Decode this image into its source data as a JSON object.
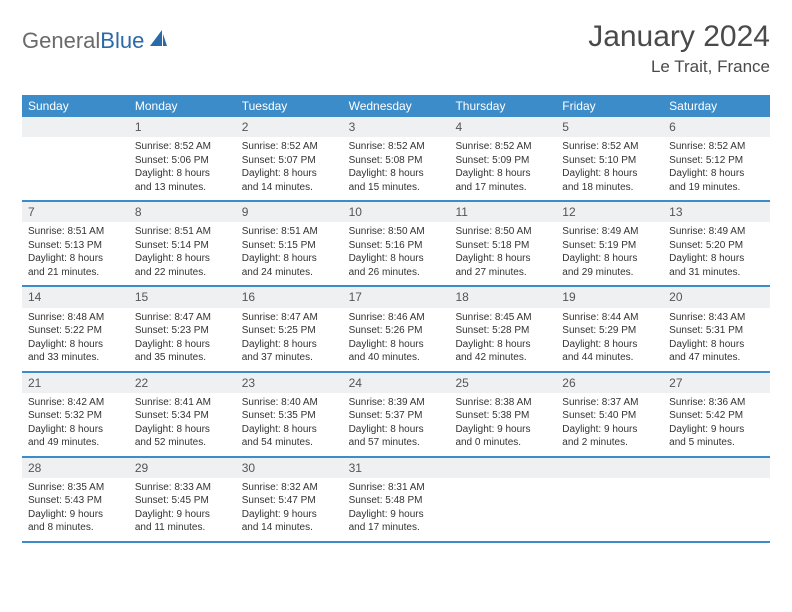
{
  "logo": {
    "text1": "General",
    "text2": "Blue"
  },
  "title": "January 2024",
  "subtitle": "Le Trait, France",
  "colors": {
    "header_bg": "#3c8cc9",
    "border": "#3c8cc9",
    "daynum_bg": "#eef0f2",
    "text": "#333333",
    "logo_gray": "#6a6a6a",
    "logo_blue": "#2b6aa8"
  },
  "dow": [
    "Sunday",
    "Monday",
    "Tuesday",
    "Wednesday",
    "Thursday",
    "Friday",
    "Saturday"
  ],
  "weeks": [
    [
      null,
      {
        "n": "1",
        "sr": "Sunrise: 8:52 AM",
        "ss": "Sunset: 5:06 PM",
        "d1": "Daylight: 8 hours",
        "d2": "and 13 minutes."
      },
      {
        "n": "2",
        "sr": "Sunrise: 8:52 AM",
        "ss": "Sunset: 5:07 PM",
        "d1": "Daylight: 8 hours",
        "d2": "and 14 minutes."
      },
      {
        "n": "3",
        "sr": "Sunrise: 8:52 AM",
        "ss": "Sunset: 5:08 PM",
        "d1": "Daylight: 8 hours",
        "d2": "and 15 minutes."
      },
      {
        "n": "4",
        "sr": "Sunrise: 8:52 AM",
        "ss": "Sunset: 5:09 PM",
        "d1": "Daylight: 8 hours",
        "d2": "and 17 minutes."
      },
      {
        "n": "5",
        "sr": "Sunrise: 8:52 AM",
        "ss": "Sunset: 5:10 PM",
        "d1": "Daylight: 8 hours",
        "d2": "and 18 minutes."
      },
      {
        "n": "6",
        "sr": "Sunrise: 8:52 AM",
        "ss": "Sunset: 5:12 PM",
        "d1": "Daylight: 8 hours",
        "d2": "and 19 minutes."
      }
    ],
    [
      {
        "n": "7",
        "sr": "Sunrise: 8:51 AM",
        "ss": "Sunset: 5:13 PM",
        "d1": "Daylight: 8 hours",
        "d2": "and 21 minutes."
      },
      {
        "n": "8",
        "sr": "Sunrise: 8:51 AM",
        "ss": "Sunset: 5:14 PM",
        "d1": "Daylight: 8 hours",
        "d2": "and 22 minutes."
      },
      {
        "n": "9",
        "sr": "Sunrise: 8:51 AM",
        "ss": "Sunset: 5:15 PM",
        "d1": "Daylight: 8 hours",
        "d2": "and 24 minutes."
      },
      {
        "n": "10",
        "sr": "Sunrise: 8:50 AM",
        "ss": "Sunset: 5:16 PM",
        "d1": "Daylight: 8 hours",
        "d2": "and 26 minutes."
      },
      {
        "n": "11",
        "sr": "Sunrise: 8:50 AM",
        "ss": "Sunset: 5:18 PM",
        "d1": "Daylight: 8 hours",
        "d2": "and 27 minutes."
      },
      {
        "n": "12",
        "sr": "Sunrise: 8:49 AM",
        "ss": "Sunset: 5:19 PM",
        "d1": "Daylight: 8 hours",
        "d2": "and 29 minutes."
      },
      {
        "n": "13",
        "sr": "Sunrise: 8:49 AM",
        "ss": "Sunset: 5:20 PM",
        "d1": "Daylight: 8 hours",
        "d2": "and 31 minutes."
      }
    ],
    [
      {
        "n": "14",
        "sr": "Sunrise: 8:48 AM",
        "ss": "Sunset: 5:22 PM",
        "d1": "Daylight: 8 hours",
        "d2": "and 33 minutes."
      },
      {
        "n": "15",
        "sr": "Sunrise: 8:47 AM",
        "ss": "Sunset: 5:23 PM",
        "d1": "Daylight: 8 hours",
        "d2": "and 35 minutes."
      },
      {
        "n": "16",
        "sr": "Sunrise: 8:47 AM",
        "ss": "Sunset: 5:25 PM",
        "d1": "Daylight: 8 hours",
        "d2": "and 37 minutes."
      },
      {
        "n": "17",
        "sr": "Sunrise: 8:46 AM",
        "ss": "Sunset: 5:26 PM",
        "d1": "Daylight: 8 hours",
        "d2": "and 40 minutes."
      },
      {
        "n": "18",
        "sr": "Sunrise: 8:45 AM",
        "ss": "Sunset: 5:28 PM",
        "d1": "Daylight: 8 hours",
        "d2": "and 42 minutes."
      },
      {
        "n": "19",
        "sr": "Sunrise: 8:44 AM",
        "ss": "Sunset: 5:29 PM",
        "d1": "Daylight: 8 hours",
        "d2": "and 44 minutes."
      },
      {
        "n": "20",
        "sr": "Sunrise: 8:43 AM",
        "ss": "Sunset: 5:31 PM",
        "d1": "Daylight: 8 hours",
        "d2": "and 47 minutes."
      }
    ],
    [
      {
        "n": "21",
        "sr": "Sunrise: 8:42 AM",
        "ss": "Sunset: 5:32 PM",
        "d1": "Daylight: 8 hours",
        "d2": "and 49 minutes."
      },
      {
        "n": "22",
        "sr": "Sunrise: 8:41 AM",
        "ss": "Sunset: 5:34 PM",
        "d1": "Daylight: 8 hours",
        "d2": "and 52 minutes."
      },
      {
        "n": "23",
        "sr": "Sunrise: 8:40 AM",
        "ss": "Sunset: 5:35 PM",
        "d1": "Daylight: 8 hours",
        "d2": "and 54 minutes."
      },
      {
        "n": "24",
        "sr": "Sunrise: 8:39 AM",
        "ss": "Sunset: 5:37 PM",
        "d1": "Daylight: 8 hours",
        "d2": "and 57 minutes."
      },
      {
        "n": "25",
        "sr": "Sunrise: 8:38 AM",
        "ss": "Sunset: 5:38 PM",
        "d1": "Daylight: 9 hours",
        "d2": "and 0 minutes."
      },
      {
        "n": "26",
        "sr": "Sunrise: 8:37 AM",
        "ss": "Sunset: 5:40 PM",
        "d1": "Daylight: 9 hours",
        "d2": "and 2 minutes."
      },
      {
        "n": "27",
        "sr": "Sunrise: 8:36 AM",
        "ss": "Sunset: 5:42 PM",
        "d1": "Daylight: 9 hours",
        "d2": "and 5 minutes."
      }
    ],
    [
      {
        "n": "28",
        "sr": "Sunrise: 8:35 AM",
        "ss": "Sunset: 5:43 PM",
        "d1": "Daylight: 9 hours",
        "d2": "and 8 minutes."
      },
      {
        "n": "29",
        "sr": "Sunrise: 8:33 AM",
        "ss": "Sunset: 5:45 PM",
        "d1": "Daylight: 9 hours",
        "d2": "and 11 minutes."
      },
      {
        "n": "30",
        "sr": "Sunrise: 8:32 AM",
        "ss": "Sunset: 5:47 PM",
        "d1": "Daylight: 9 hours",
        "d2": "and 14 minutes."
      },
      {
        "n": "31",
        "sr": "Sunrise: 8:31 AM",
        "ss": "Sunset: 5:48 PM",
        "d1": "Daylight: 9 hours",
        "d2": "and 17 minutes."
      },
      null,
      null,
      null
    ]
  ]
}
